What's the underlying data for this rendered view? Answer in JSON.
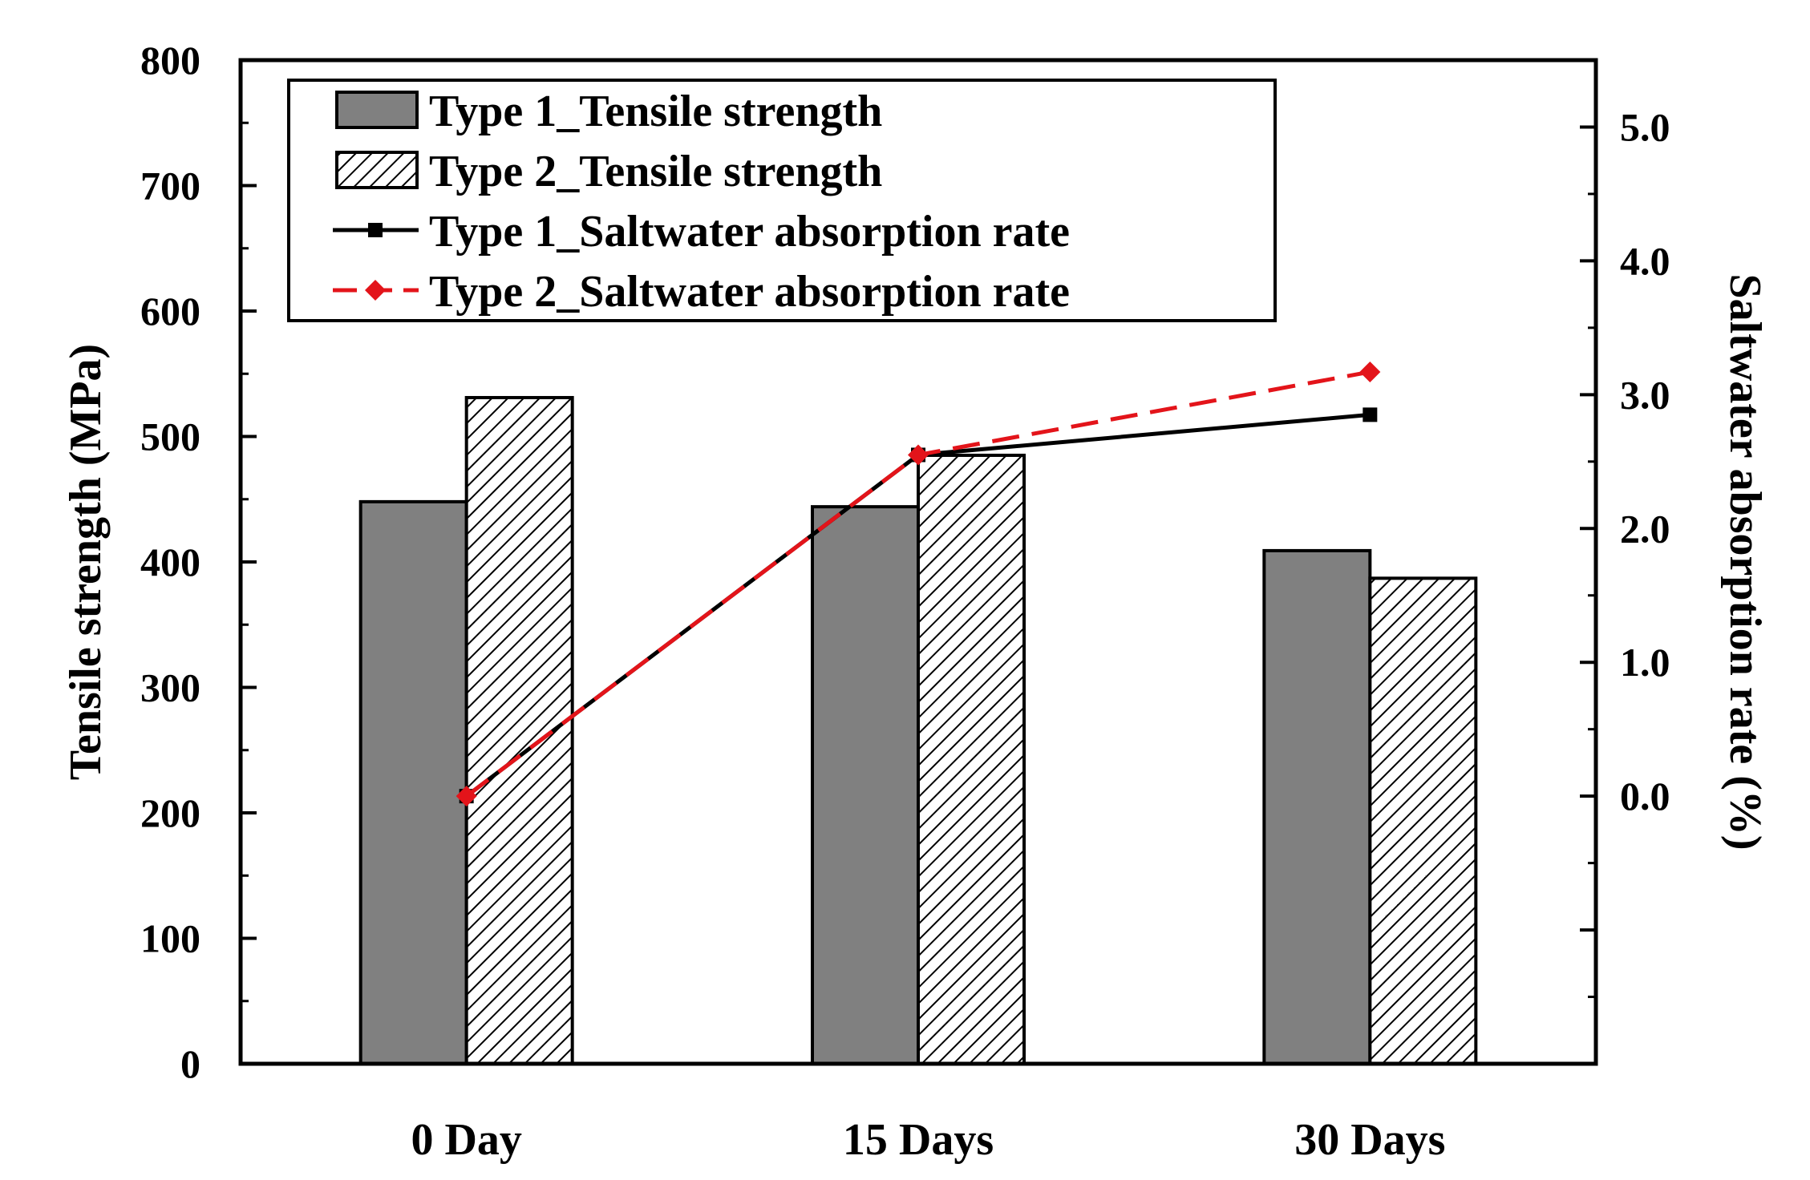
{
  "chart_data": {
    "type": "bar",
    "categories": [
      "0 Day",
      "15 Days",
      "30 Days"
    ],
    "bar_series": [
      {
        "name": "Type 1_Tensile strength",
        "axis": "left",
        "color": "#808080",
        "pattern": "solid",
        "values": [
          448,
          444,
          409
        ]
      },
      {
        "name": "Type 2_Tensile strength",
        "axis": "left",
        "color": "#ffffff",
        "pattern": "hatch",
        "values": [
          531,
          485,
          387
        ]
      }
    ],
    "line_series": [
      {
        "name": "Type 1_Saltwater absorption rate",
        "axis": "right",
        "color": "#000000",
        "dash": "solid",
        "marker": "square",
        "values": [
          0.0,
          2.55,
          2.85
        ]
      },
      {
        "name": "Type 2_Saltwater absorption rate",
        "axis": "right",
        "color": "#e3141a",
        "dash": "dashed",
        "marker": "diamond",
        "values": [
          0.0,
          2.55,
          3.17
        ]
      }
    ],
    "y_left": {
      "label": "Tensile strength (MPa)",
      "min": 0,
      "max": 800,
      "ticks": [
        "0",
        "100",
        "200",
        "300",
        "400",
        "500",
        "600",
        "700",
        "800"
      ]
    },
    "y_right": {
      "label": "Saltwater absorption rate (%)",
      "min": -2.0,
      "max": 5.5,
      "ticks": [
        "0.0",
        "1.0",
        "2.0",
        "3.0",
        "4.0",
        "5.0"
      ],
      "tick_values": [
        0,
        1,
        2,
        3,
        4,
        5
      ]
    },
    "legend_position": "top-left",
    "grid": false
  }
}
